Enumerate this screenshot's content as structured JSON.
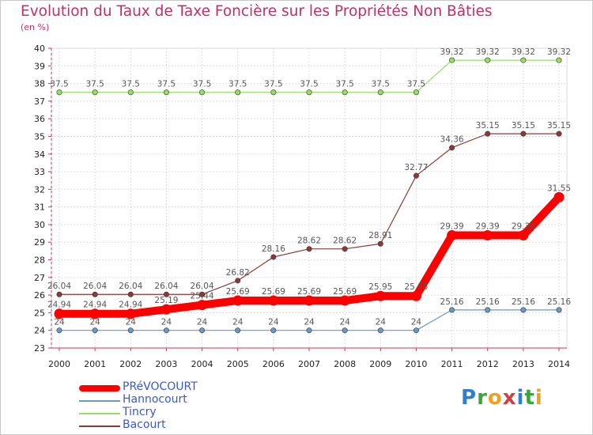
{
  "chart_data": {
    "type": "line",
    "title": "Evolution du Taux de Taxe Foncière sur les Propriétés Non Bâties",
    "ylabel": "(en %)",
    "x": [
      "2000",
      "2001",
      "2002",
      "2003",
      "2004",
      "2005",
      "2006",
      "2007",
      "2008",
      "2009",
      "2010",
      "2011",
      "2012",
      "2013",
      "2014"
    ],
    "ylim": [
      23,
      40
    ],
    "yticks": [
      "23",
      "24",
      "25",
      "26",
      "27",
      "28",
      "29",
      "30",
      "31",
      "32",
      "33",
      "34",
      "35",
      "36",
      "37",
      "38",
      "39",
      "40"
    ],
    "grid": true,
    "legend_position": "bottom-left",
    "series": [
      {
        "name": "PRéVOCOURT",
        "color": "#ff0000",
        "values": [
          24.94,
          24.94,
          24.94,
          25.19,
          25.44,
          25.69,
          25.69,
          25.69,
          25.69,
          25.95,
          25.95,
          29.39,
          29.39,
          29.39,
          31.55
        ],
        "labels": [
          "24.94",
          "24.94",
          "24.94",
          "25.19",
          "25.44",
          "25.69",
          "25.69",
          "25.69",
          "25.69",
          "25.95",
          "25.95",
          "29.39",
          "29.39",
          "29.39",
          "31.55"
        ]
      },
      {
        "name": "Hannocourt",
        "color": "#6699cc",
        "values": [
          24,
          24,
          24,
          24,
          24,
          24,
          24,
          24,
          24,
          24,
          24,
          25.16,
          25.16,
          25.16,
          25.16
        ],
        "labels": [
          "24",
          "24",
          "24",
          "24",
          "24",
          "24",
          "24",
          "24",
          "24",
          "24",
          "24",
          "25.16",
          "25.16",
          "25.16",
          "25.16"
        ]
      },
      {
        "name": "Tincry",
        "color": "#99dd66",
        "values": [
          37.5,
          37.5,
          37.5,
          37.5,
          37.5,
          37.5,
          37.5,
          37.5,
          37.5,
          37.5,
          37.5,
          39.32,
          39.32,
          39.32,
          39.32
        ],
        "labels": [
          "37.5",
          "37.5",
          "37.5",
          "37.5",
          "37.5",
          "37.5",
          "37.5",
          "37.5",
          "37.5",
          "37.5",
          "37.5",
          "39.32",
          "39.32",
          "39.32",
          "39.32"
        ]
      },
      {
        "name": "Bacourt",
        "color": "#8b3a3a",
        "values": [
          26.04,
          26.04,
          26.04,
          26.04,
          26.04,
          26.82,
          28.16,
          28.62,
          28.62,
          28.91,
          32.77,
          34.36,
          35.15,
          35.15,
          35.15
        ],
        "labels": [
          "26.04",
          "26.04",
          "26.04",
          "26.04",
          "26.04",
          "26.82",
          "28.16",
          "28.62",
          "28.62",
          "28.91",
          "32.77",
          "34.36",
          "35.15",
          "35.15",
          "35.15"
        ]
      }
    ]
  },
  "logo": {
    "text": "Proxiti"
  }
}
